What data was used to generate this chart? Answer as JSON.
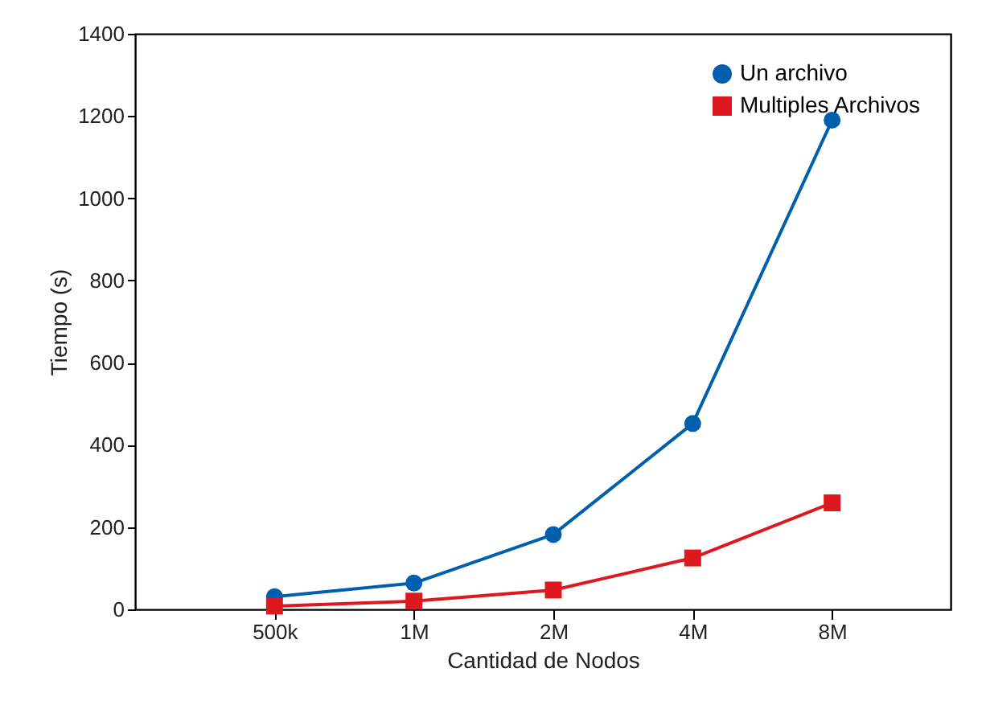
{
  "chart_data": {
    "type": "line",
    "xlabel": "Cantidad de Nodos",
    "ylabel": "Tiempo (s)",
    "categories": [
      "500k",
      "1M",
      "2M",
      "4M",
      "8M"
    ],
    "series": [
      {
        "name": "Un archivo",
        "color": "#0060ad",
        "marker": "circle",
        "values": [
          31,
          64,
          182,
          452,
          1190
        ]
      },
      {
        "name": "Multiples Archivos",
        "color": "#dd181f",
        "marker": "square",
        "values": [
          8,
          20,
          47,
          125,
          259
        ]
      }
    ],
    "ylim": [
      0,
      1400
    ],
    "yticks": [
      0,
      200,
      400,
      600,
      800,
      1000,
      1200,
      1400
    ],
    "grid": false,
    "legend": "top right",
    "line_style": "solid"
  }
}
